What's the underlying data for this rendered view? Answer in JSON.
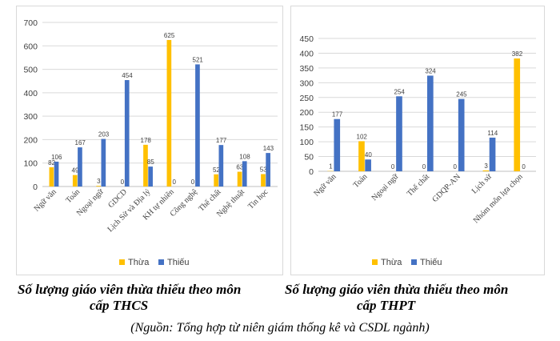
{
  "chart_data": [
    {
      "type": "bar",
      "id": "thcs",
      "categories": [
        "Ngữ văn",
        "Toán",
        "Ngoại ngữ",
        "GDCD",
        "Lịch Sử và Địa lý",
        "KH tự nhiên",
        "Công nghệ",
        "Thể chất",
        "Nghệ thuật",
        "Tin học"
      ],
      "series": [
        {
          "name": "Thừa",
          "color": "#ffc000",
          "values": [
            82,
            49,
            3,
            0,
            178,
            625,
            0,
            52,
            63,
            53
          ]
        },
        {
          "name": "Thiếu",
          "color": "#4472c4",
          "values": [
            106,
            167,
            203,
            454,
            85,
            0,
            521,
            177,
            108,
            143
          ]
        }
      ],
      "yticks": [
        "0",
        "100",
        "200",
        "300",
        "400",
        "500",
        "600",
        "700"
      ],
      "ylim": [
        0,
        700
      ],
      "legend": "bottom",
      "title": "Số lượng giáo viên thừa thiếu theo môn cấp THCS"
    },
    {
      "type": "bar",
      "id": "thpt",
      "categories": [
        "Ngữ văn",
        "Toán",
        "Ngoại ngữ",
        "Thể chất",
        "GDQP-AN",
        "Lịch sử",
        "Nhóm môn lựa chọn"
      ],
      "series": [
        {
          "name": "Thừa",
          "color": "#ffc000",
          "values": [
            1,
            102,
            0,
            0,
            0,
            3,
            382
          ]
        },
        {
          "name": "Thiếu",
          "color": "#4472c4",
          "values": [
            177,
            40,
            254,
            324,
            245,
            114,
            0
          ]
        }
      ],
      "yticks": [
        "0",
        "50",
        "100",
        "150",
        "200",
        "250",
        "300",
        "350",
        "400",
        "450"
      ],
      "ylim": [
        0,
        450
      ],
      "legend": "bottom",
      "title": "Số lượng giáo viên thừa thiếu theo môn cấp THPT"
    }
  ],
  "captions": {
    "thcs_line1": "Số lượng giáo viên thừa thiếu theo môn",
    "thcs_line2": "cấp THCS",
    "thpt_line1": "Số lượng giáo viên thừa thiếu theo môn",
    "thpt_line2": "cấp THPT",
    "source": "(Nguồn: Tổng hợp từ niên giám thống kê và CSDL ngành)"
  }
}
